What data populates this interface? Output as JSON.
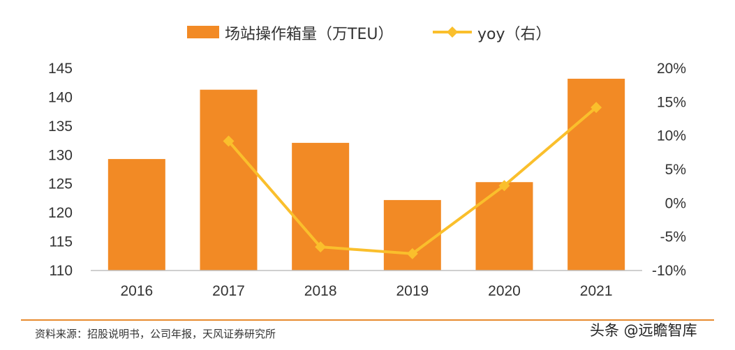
{
  "colors": {
    "bar": "#F28A25",
    "line": "#FABF2C",
    "axis": "#bfbfbf",
    "footer_line": "#E88A2E"
  },
  "chart_data": {
    "type": "bar",
    "categories": [
      "2016",
      "2017",
      "2018",
      "2019",
      "2020",
      "2021"
    ],
    "series": [
      {
        "name": "场站操作箱量（万TEU）",
        "type": "bar",
        "axis": "left",
        "values": [
          129.3,
          141.3,
          132.1,
          122.2,
          125.3,
          143.2
        ]
      },
      {
        "name": "yoy（右）",
        "type": "line",
        "axis": "right",
        "values": [
          null,
          9.2,
          -6.5,
          -7.5,
          2.6,
          14.2
        ]
      }
    ],
    "ylim_left": [
      110,
      145
    ],
    "yticks_left": [
      "145",
      "140",
      "135",
      "130",
      "125",
      "120",
      "115",
      "110"
    ],
    "ylim_right": [
      -10,
      20
    ],
    "yticks_right": [
      "20%",
      "15%",
      "10%",
      "5%",
      "0%",
      "-5%",
      "-10%"
    ],
    "legend": "top",
    "grid": false
  },
  "footer": {
    "source": "资料来源：招股说明书，公司年报，天风证券研究所",
    "watermark": "头条 @远瞻智库"
  }
}
